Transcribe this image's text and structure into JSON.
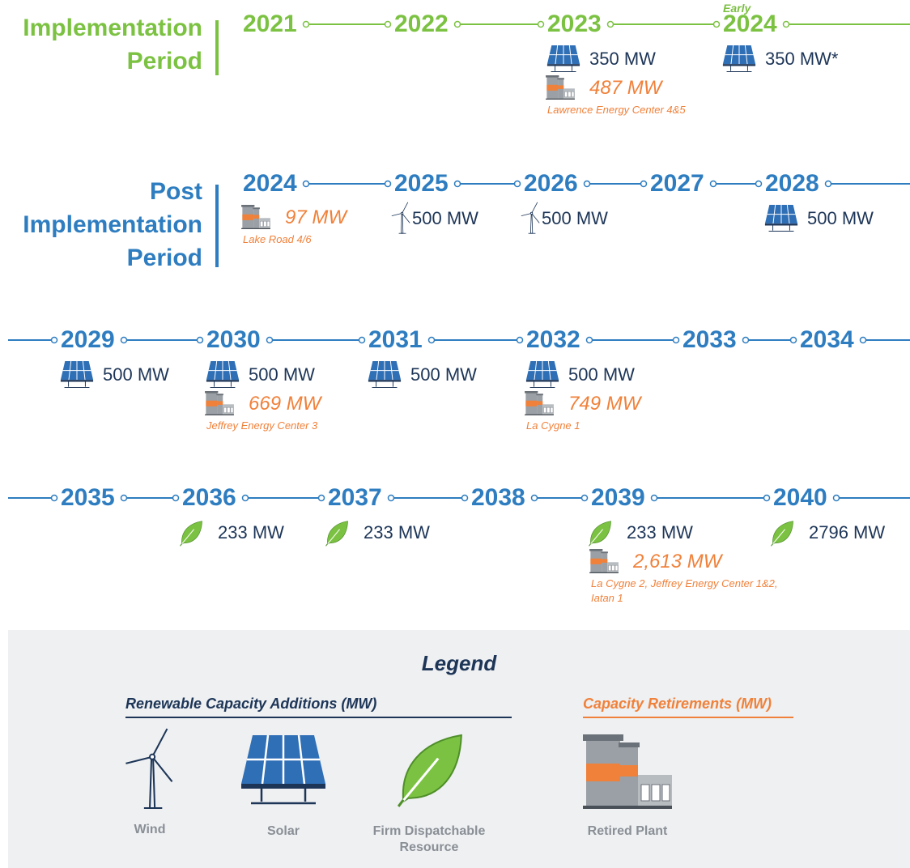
{
  "periods": [
    {
      "title": "Implementation Period"
    },
    {
      "title": "Post Implementation Period"
    }
  ],
  "rows": [
    {
      "years": [
        {
          "year": "2021"
        },
        {
          "year": "2022"
        },
        {
          "year": "2023",
          "additions": [
            {
              "icon": "solar",
              "text": "350 MW"
            }
          ],
          "retirement": {
            "text": "487 MW",
            "plants": "Lawrence Energy Center 4&5"
          }
        },
        {
          "year": "2024",
          "note": "Early",
          "additions": [
            {
              "icon": "solar",
              "text": "350 MW*"
            }
          ]
        }
      ]
    },
    {
      "years": [
        {
          "year": "2024",
          "retirement": {
            "text": "97 MW",
            "plants": "Lake Road 4/6"
          }
        },
        {
          "year": "2025",
          "additions": [
            {
              "icon": "wind",
              "text": "500 MW"
            }
          ]
        },
        {
          "year": "2026",
          "additions": [
            {
              "icon": "wind",
              "text": "500 MW"
            }
          ]
        },
        {
          "year": "2027"
        },
        {
          "year": "2028",
          "additions": [
            {
              "icon": "solar",
              "text": "500 MW"
            }
          ]
        }
      ]
    },
    {
      "years": [
        {
          "year": "2029",
          "additions": [
            {
              "icon": "solar",
              "text": "500 MW"
            }
          ]
        },
        {
          "year": "2030",
          "additions": [
            {
              "icon": "solar",
              "text": "500 MW"
            }
          ],
          "retirement": {
            "text": "669 MW",
            "plants": "Jeffrey Energy Center 3"
          }
        },
        {
          "year": "2031",
          "additions": [
            {
              "icon": "solar",
              "text": "500 MW"
            }
          ]
        },
        {
          "year": "2032",
          "additions": [
            {
              "icon": "solar",
              "text": "500 MW"
            }
          ],
          "retirement": {
            "text": "749 MW",
            "plants": "La Cygne 1"
          }
        },
        {
          "year": "2033"
        },
        {
          "year": "2034"
        }
      ]
    },
    {
      "years": [
        {
          "year": "2035"
        },
        {
          "year": "2036",
          "additions": [
            {
              "icon": "leaf",
              "text": "233 MW"
            }
          ]
        },
        {
          "year": "2037",
          "additions": [
            {
              "icon": "leaf",
              "text": "233 MW"
            }
          ]
        },
        {
          "year": "2038"
        },
        {
          "year": "2039",
          "additions": [
            {
              "icon": "leaf",
              "text": "233 MW"
            }
          ],
          "retirement": {
            "text": "2,613 MW",
            "plants": "La Cygne 2, Jeffrey Energy Center 1&2, Iatan 1"
          }
        },
        {
          "year": "2040",
          "additions": [
            {
              "icon": "leaf",
              "text": "2796 MW"
            }
          ]
        }
      ]
    }
  ],
  "legend": {
    "title": "Legend",
    "groups": [
      {
        "title": "Renewable Capacity Additions (MW)",
        "items": [
          "Wind",
          "Solar",
          "Firm Dispatchable Resource"
        ]
      },
      {
        "title": "Capacity Retirements (MW)",
        "items": [
          "Retired Plant"
        ]
      }
    ]
  }
}
